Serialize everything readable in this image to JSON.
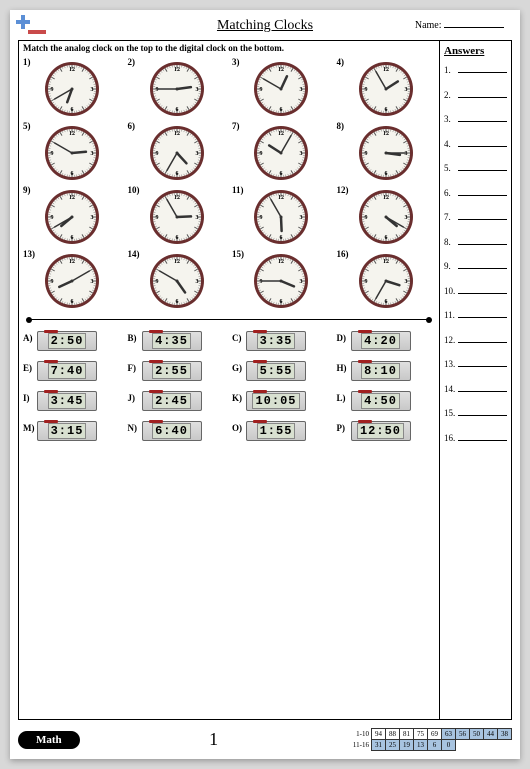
{
  "title": "Matching Clocks",
  "name_label": "Name:",
  "instruction": "Match the analog clock on the top to the digital clock on the bottom.",
  "answers_title": "Answers",
  "clock_face": {
    "numerals": [
      "12",
      "3",
      "6",
      "9"
    ],
    "rim_color": "#6a2e2e",
    "face_color": "#f5f4ee",
    "hand_color": "#333333"
  },
  "analog": [
    {
      "label": "1)",
      "hour": 6,
      "minute": 40
    },
    {
      "label": "2)",
      "hour": 2,
      "minute": 45
    },
    {
      "label": "3)",
      "hour": 12,
      "minute": 50
    },
    {
      "label": "4)",
      "hour": 1,
      "minute": 55
    },
    {
      "label": "5)",
      "hour": 2,
      "minute": 50
    },
    {
      "label": "6)",
      "hour": 4,
      "minute": 35
    },
    {
      "label": "7)",
      "hour": 10,
      "minute": 5
    },
    {
      "label": "8)",
      "hour": 3,
      "minute": 15
    },
    {
      "label": "9)",
      "hour": 7,
      "minute": 40
    },
    {
      "label": "10)",
      "hour": 2,
      "minute": 55
    },
    {
      "label": "11)",
      "hour": 5,
      "minute": 55
    },
    {
      "label": "12)",
      "hour": 4,
      "minute": 20
    },
    {
      "label": "13)",
      "hour": 8,
      "minute": 10
    },
    {
      "label": "14)",
      "hour": 4,
      "minute": 50
    },
    {
      "label": "15)",
      "hour": 3,
      "minute": 45
    },
    {
      "label": "16)",
      "hour": 3,
      "minute": 35
    }
  ],
  "digital": [
    {
      "label": "A)",
      "time": "2:50"
    },
    {
      "label": "B)",
      "time": "4:35"
    },
    {
      "label": "C)",
      "time": "3:35"
    },
    {
      "label": "D)",
      "time": "4:20"
    },
    {
      "label": "E)",
      "time": "7:40"
    },
    {
      "label": "F)",
      "time": "2:55"
    },
    {
      "label": "G)",
      "time": "5:55"
    },
    {
      "label": "H)",
      "time": "8:10"
    },
    {
      "label": "I)",
      "time": "3:45"
    },
    {
      "label": "J)",
      "time": "2:45"
    },
    {
      "label": "K)",
      "time": "10:05"
    },
    {
      "label": "L)",
      "time": "4:50"
    },
    {
      "label": "M)",
      "time": "3:15"
    },
    {
      "label": "N)",
      "time": "6:40"
    },
    {
      "label": "O)",
      "time": "1:55"
    },
    {
      "label": "P)",
      "time": "12:50"
    }
  ],
  "answer_numbers": [
    "1.",
    "2.",
    "3.",
    "4.",
    "5.",
    "6.",
    "7.",
    "8.",
    "9.",
    "10.",
    "11.",
    "12.",
    "13.",
    "14.",
    "15.",
    "16."
  ],
  "footer": {
    "badge": "Math",
    "page": "1",
    "score_labels": [
      "1-10",
      "11-16"
    ],
    "row1": [
      "94",
      "88",
      "81",
      "75",
      "69",
      "63",
      "56",
      "50",
      "44",
      "38"
    ],
    "row1_shade_start": 5,
    "row2": [
      "31",
      "25",
      "19",
      "13",
      "6",
      "0"
    ],
    "row2_shade_start": 0
  }
}
